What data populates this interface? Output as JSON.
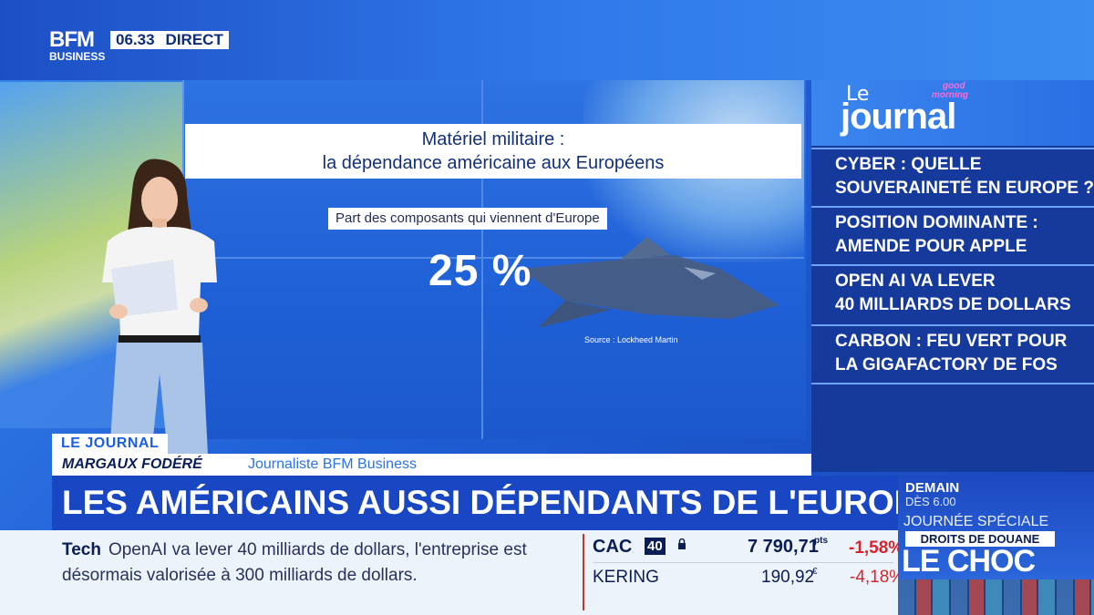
{
  "channel": {
    "logo_top": "BFM",
    "logo_bottom": "BUSINESS",
    "time": "06.33",
    "live_label": "DIRECT"
  },
  "screen": {
    "title_line1": "Matériel militaire :",
    "title_line2": "la dépendance américaine aux Européens",
    "subtitle": "Part des composants qui viennent d'Europe",
    "value": "25 %",
    "source": "Source : Lockheed Martin"
  },
  "sidebar": {
    "brand_small": "Le",
    "brand_big": "journal",
    "brand_tag_line1": "good",
    "brand_tag_line2": "morning",
    "headlines": [
      {
        "line1": "CYBER : QUELLE",
        "line2": "SOUVERAINETÉ EN EUROPE ?"
      },
      {
        "line1": "POSITION DOMINANTE :",
        "line2": "AMENDE POUR APPLE"
      },
      {
        "line1": "OPEN AI VA LEVER",
        "line2": "40 MILLIARDS DE DOLLARS"
      },
      {
        "line1": "CARBON : FEU VERT POUR",
        "line2": "LA GIGAFACTORY DE FOS"
      }
    ]
  },
  "lower_third": {
    "tag": "LE JOURNAL",
    "name": "MARGAUX FODÉRÉ",
    "role": "Journaliste BFM Business",
    "headline": "LES AMÉRICAINS AUSSI DÉPENDANTS DE L'EUROPE"
  },
  "ticker": {
    "category": "Tech",
    "text": "OpenAI va lever 40 milliards de dollars, l'entreprise est désormais valorisée à 300 milliards de dollars."
  },
  "market": {
    "index_name": "CAC",
    "index_badge": "40",
    "index_value": "7 790,71",
    "index_unit": "pts",
    "index_change": "-1,58%",
    "stock_name": "KERING",
    "stock_value": "190,92",
    "stock_unit": "€",
    "stock_change": "-4,18%"
  },
  "promo": {
    "day": "DEMAIN",
    "time": "DÈS 6.00",
    "special": "JOURNÉE SPÉCIALE",
    "box": "DROITS DE DOUANE",
    "big": "LE CHOC"
  }
}
